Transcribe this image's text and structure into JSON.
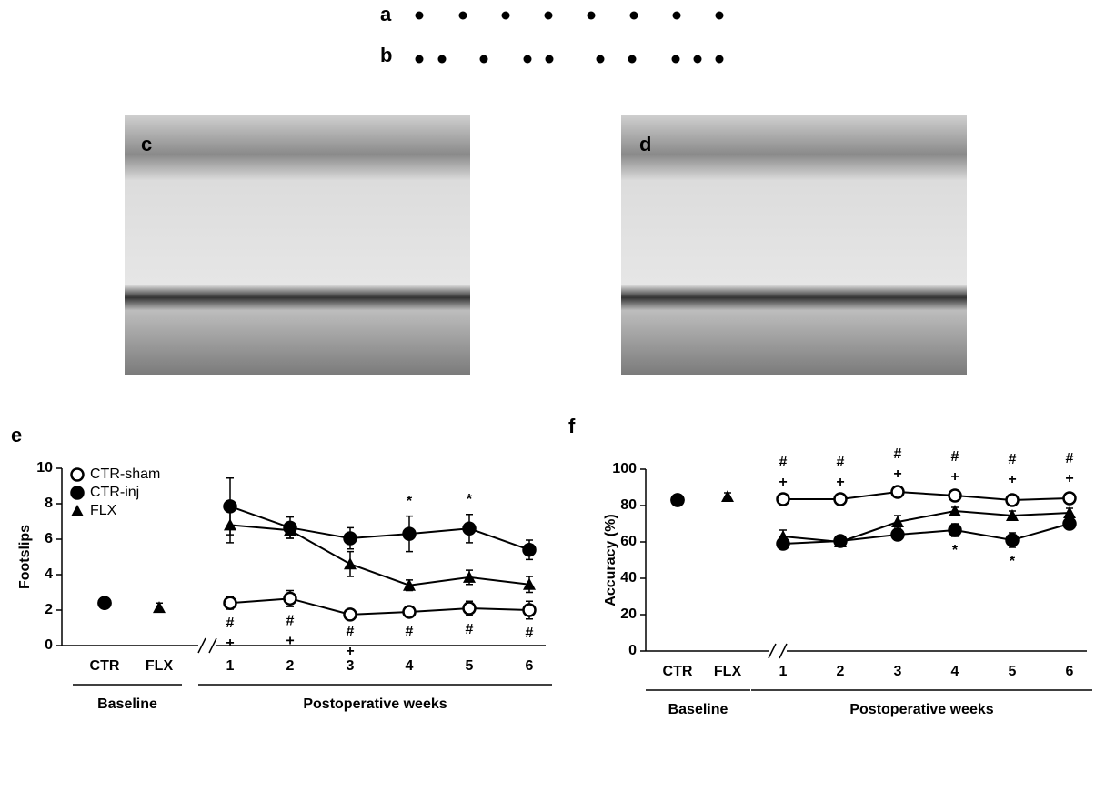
{
  "panels": {
    "a": "a",
    "b": "b",
    "c": "c",
    "d": "d",
    "e": "e",
    "f": "f"
  },
  "chart_data": [
    {
      "type": "line",
      "ylabel": "Footslips",
      "ylim": [
        0,
        10
      ],
      "yticks": [
        0,
        2,
        4,
        6,
        8,
        10
      ],
      "categories": [
        "CTR",
        "FLX",
        "1",
        "2",
        "3",
        "4",
        "5",
        "6"
      ],
      "group_labels": [
        "Baseline",
        "Postoperative weeks"
      ],
      "legend": true,
      "series": [
        {
          "name": "CTR-sham",
          "marker": "open-circle",
          "color": "#000000",
          "values": [
            2.4,
            null,
            2.4,
            2.65,
            1.75,
            1.9,
            2.1,
            2.0
          ],
          "errors": [
            0.15,
            null,
            0.35,
            0.45,
            0.15,
            0.3,
            0.4,
            0.5
          ],
          "below": [
            null,
            null,
            [
              "#",
              "+"
            ],
            [
              "#",
              "+"
            ],
            [
              "#",
              "+"
            ],
            [
              "#"
            ],
            [
              "#"
            ],
            [
              "#"
            ]
          ]
        },
        {
          "name": "CTR-inj",
          "marker": "circle",
          "color": "#000000",
          "values": [
            2.4,
            null,
            7.85,
            6.65,
            6.05,
            6.3,
            6.6,
            5.4
          ],
          "errors": [
            0.15,
            null,
            1.6,
            0.6,
            0.6,
            1.0,
            0.8,
            0.55
          ],
          "above": [
            null,
            null,
            null,
            null,
            null,
            [
              "*"
            ],
            [
              "*"
            ],
            null
          ]
        },
        {
          "name": "FLX",
          "marker": "triangle",
          "color": "#000000",
          "values": [
            null,
            2.15,
            6.8,
            6.5,
            4.6,
            3.4,
            3.85,
            3.45
          ],
          "errors": [
            null,
            0.25,
            1.0,
            0.45,
            0.7,
            0.3,
            0.4,
            0.45
          ]
        }
      ]
    },
    {
      "type": "line",
      "ylabel": "Accuracy (%)",
      "ylim": [
        0,
        100
      ],
      "yticks": [
        0,
        20,
        40,
        60,
        80,
        100
      ],
      "categories": [
        "CTR",
        "FLX",
        "1",
        "2",
        "3",
        "4",
        "5",
        "6"
      ],
      "group_labels": [
        "Baseline",
        "Postoperative weeks"
      ],
      "legend": false,
      "series": [
        {
          "name": "CTR-sham",
          "marker": "open-circle",
          "color": "#000000",
          "values": [
            83,
            null,
            83.5,
            83.5,
            87.5,
            85.5,
            83,
            84
          ],
          "errors": [
            1,
            null,
            1,
            1,
            1.5,
            2,
            3,
            2.5
          ],
          "above": [
            null,
            null,
            [
              "+",
              "#"
            ],
            [
              "+",
              "#"
            ],
            [
              "+",
              "#"
            ],
            [
              "+",
              "#"
            ],
            [
              "+",
              "#"
            ],
            [
              "+",
              "#"
            ]
          ]
        },
        {
          "name": "CTR-inj",
          "marker": "circle",
          "color": "#000000",
          "values": [
            83,
            null,
            59,
            60.5,
            64,
            66.5,
            61,
            70
          ],
          "errors": [
            1,
            null,
            2.5,
            2,
            3,
            3.5,
            4,
            1.5
          ],
          "below": [
            null,
            null,
            null,
            null,
            null,
            [
              "*"
            ],
            [
              "*"
            ],
            null
          ]
        },
        {
          "name": "FLX",
          "marker": "triangle",
          "color": "#000000",
          "values": [
            null,
            85,
            63,
            60,
            71,
            77,
            74.5,
            76
          ],
          "errors": [
            null,
            2,
            3.5,
            2,
            3.5,
            2,
            2.5,
            2.5
          ]
        }
      ]
    }
  ]
}
